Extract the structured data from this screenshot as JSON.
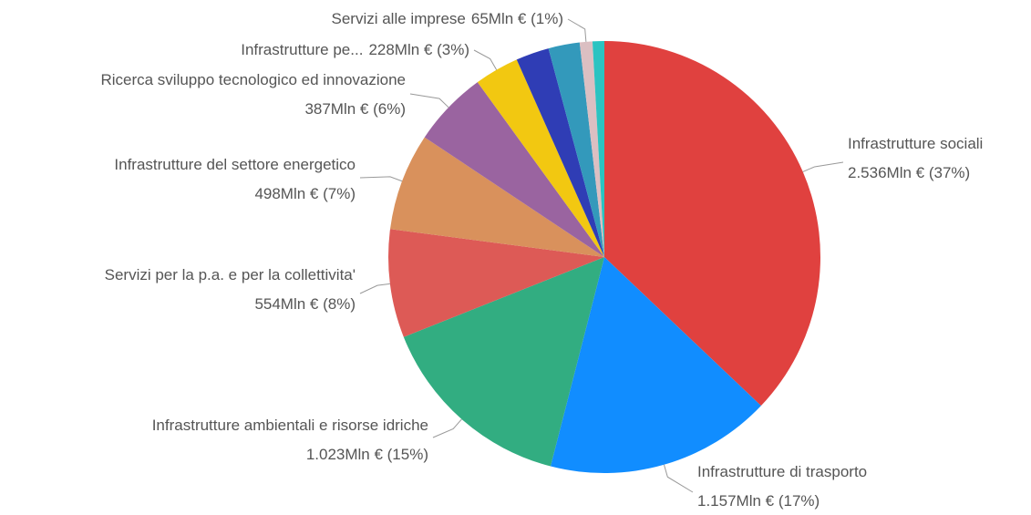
{
  "chart_data": {
    "type": "pie",
    "categories": [
      "Infrastrutture sociali",
      "Infrastrutture di trasporto",
      "Infrastrutture ambientali e risorse idriche",
      "Servizi per la p.a. e per la collettivita'",
      "Infrastrutture del settore energetico",
      "Ricerca sviluppo tecnologico ed innovazione",
      "Infrastrutture pe...",
      null,
      null,
      "Servizi alle imprese",
      null
    ],
    "values": [
      2536,
      1157,
      1023,
      554,
      498,
      387,
      228,
      170,
      160,
      65,
      60
    ],
    "value_labels": [
      "2.536Mln € (37%)",
      "1.157Mln € (17%)",
      "1.023Mln € (15%)",
      "554Mln € (8%)",
      "498Mln € (7%)",
      "387Mln € (6%)",
      "228Mln € (3%)",
      null,
      null,
      "65Mln € (1%)",
      null
    ],
    "colors": [
      "#E0413F",
      "#118DFF",
      "#32AD81",
      "#DD5A56",
      "#D9915C",
      "#9A64A0",
      "#F2C811",
      "#2F3DB5",
      "#3399BB",
      "#DBBFC2",
      "#2BC3C1"
    ]
  }
}
